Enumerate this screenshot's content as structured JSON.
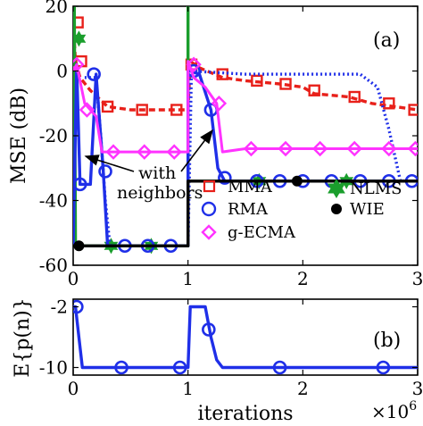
{
  "figure": {
    "x_axis_label": "iterations",
    "x_exponent_label": "×10",
    "x_exponent_power": "6",
    "annotation_neighbors": [
      "with",
      "neighbors"
    ]
  },
  "colors": {
    "MMA": "#e8201a",
    "NLMS": "#1a9e2c",
    "RMA": "#1f2fe8",
    "WIE": "#000000",
    "g-ECMA": "#ff33ff"
  },
  "chart_data": [
    {
      "type": "line",
      "panel_label": "(a)",
      "ylabel": "MSE (dB)",
      "xlim": [
        0,
        3
      ],
      "ylim": [
        -60,
        20
      ],
      "x_ticks": [
        0,
        1,
        2,
        3
      ],
      "x_tick_labels": [
        "0",
        "1",
        "2",
        "3"
      ],
      "y_ticks": [
        -60,
        -40,
        -20,
        0,
        20
      ],
      "y_tick_labels": [
        "-60",
        "-40",
        "-20",
        "0",
        "20"
      ],
      "legend_placement": "bottom-right",
      "legend": [
        "MMA",
        "NLMS",
        "RMA",
        "WIE",
        "g-ECMA"
      ],
      "series": [
        {
          "name": "MMA",
          "marker": "square",
          "line": "dashed",
          "x": [
            0.0,
            0.02,
            0.06,
            0.15,
            0.3,
            0.5,
            0.7,
            0.9,
            1.0,
            1.02,
            1.1,
            1.3,
            1.5,
            1.8,
            2.0,
            2.1,
            2.4,
            2.6,
            2.8,
            3.0
          ],
          "y": [
            15,
            3,
            -2,
            -6,
            -11,
            -12,
            -12,
            -12,
            -12,
            3,
            1,
            -2,
            -3,
            -4,
            -5,
            -7,
            -8,
            -10,
            -11,
            -12
          ],
          "marker_x": [
            0.04,
            0.07,
            0.3,
            0.6,
            0.9,
            1.03,
            1.3,
            1.6,
            1.85,
            2.1,
            2.45,
            2.75,
            2.97
          ],
          "marker_y": [
            15,
            3,
            -11,
            -12,
            -12,
            2,
            -1,
            -3,
            -4,
            -6,
            -8,
            -10,
            -12
          ]
        },
        {
          "name": "NLMS",
          "marker": "hexagram",
          "line": "solid",
          "x": [
            0.0,
            0.0,
            0.01,
            0.02,
            0.04,
            0.06,
            0.08,
            0.1,
            1.0,
            1.0,
            1.0,
            1.01,
            1.03,
            1.05,
            1.08,
            3.0
          ],
          "y": [
            -54,
            20,
            20,
            -54,
            -54,
            -54,
            -54,
            -54,
            -54,
            20,
            -34,
            -34,
            -34,
            -34,
            -34,
            -34
          ],
          "marker_x": [
            0.05,
            0.33,
            0.68,
            1.62,
            2.38
          ],
          "marker_y": [
            10,
            -54,
            -54,
            -34,
            -34
          ]
        },
        {
          "name": "RMA",
          "marker": "circle",
          "line": "solid+dotted",
          "x": [
            0.0,
            0.03,
            0.06,
            0.15,
            0.2,
            0.26,
            0.3,
            1.0,
            1.0,
            1.02,
            1.1,
            1.2,
            1.26,
            1.32,
            3.0
          ],
          "y": [
            -54,
            2,
            -35,
            -35,
            -1,
            -30,
            -54,
            -54,
            0,
            0,
            -1,
            -12,
            -30,
            -34,
            -34
          ],
          "marker_x": [
            0.06,
            0.18,
            0.28,
            0.45,
            0.65,
            0.85,
            1.05,
            1.2,
            1.32,
            1.6,
            1.8,
            2.0,
            2.25,
            2.5,
            2.75,
            2.95
          ],
          "marker_y": [
            -35,
            -1,
            -31,
            -54,
            -54,
            -54,
            0,
            -12,
            -33,
            -34,
            -34,
            -34,
            -34,
            -34,
            -34,
            -34
          ]
        },
        {
          "name": "RMA-dotted",
          "marker": "none",
          "line": "dotted",
          "x": [
            0.1,
            0.15,
            0.2,
            0.24,
            0.28,
            0.32,
            1.0,
            1.03,
            1.5,
            2.0,
            2.5,
            2.65,
            2.75,
            2.85,
            3.0
          ],
          "y": [
            -2,
            -2,
            -2,
            -20,
            -40,
            -54,
            -54,
            0,
            -1,
            -1,
            -1,
            -5,
            -18,
            -34,
            -34
          ],
          "marker_x": [
            1.33,
            1.6,
            1.9,
            2.1,
            2.35,
            2.65,
            2.78
          ],
          "marker_y": [
            -1,
            -1,
            -1,
            -1,
            -1,
            -2,
            -18
          ]
        },
        {
          "name": "WIE",
          "marker": "dot",
          "line": "solid",
          "x": [
            0.0,
            1.0,
            1.0,
            3.0
          ],
          "y": [
            -54,
            -54,
            -34,
            -34
          ],
          "marker_x": [
            0.05,
            1.95
          ],
          "marker_y": [
            -54,
            -34
          ]
        },
        {
          "name": "g-ECMA",
          "marker": "diamond",
          "line": "solid",
          "x": [
            0.0,
            0.03,
            0.1,
            0.2,
            0.25,
            0.35,
            0.5,
            1.0,
            1.0,
            1.05,
            1.15,
            1.25,
            1.3,
            1.5,
            3.0
          ],
          "y": [
            0,
            2,
            -10,
            -14,
            -25,
            -25,
            -25,
            -25,
            3,
            -2,
            -5,
            -10,
            -25,
            -24,
            -24
          ],
          "marker_x": [
            0.03,
            0.12,
            0.35,
            0.62,
            0.88,
            1.05,
            1.27,
            1.55,
            1.85,
            2.15,
            2.45,
            2.75,
            2.98
          ],
          "marker_y": [
            2,
            -12,
            -25,
            -25,
            -25,
            2,
            -10,
            -24,
            -24,
            -24,
            -24,
            -24,
            -24
          ]
        }
      ]
    },
    {
      "type": "line",
      "panel_label": "(b)",
      "ylabel": "E{p(n)}",
      "xlim": [
        0,
        3
      ],
      "ylim": [
        -11,
        -1
      ],
      "x_ticks": [
        0,
        1,
        2,
        3
      ],
      "x_tick_labels": [
        "0",
        "1",
        "2",
        "3"
      ],
      "y_ticks": [
        -10,
        -2
      ],
      "y_tick_labels": [
        "-10",
        "-2"
      ],
      "series": [
        {
          "name": "RMA",
          "marker": "circle",
          "line": "solid",
          "x": [
            0.0,
            0.02,
            0.05,
            0.08,
            1.0,
            1.02,
            1.04,
            1.15,
            1.2,
            1.25,
            1.3,
            3.0
          ],
          "y": [
            -2,
            -2,
            -6,
            -10,
            -10,
            -2,
            -2,
            -2,
            -6,
            -9,
            -10,
            -10
          ],
          "marker_x": [
            0.03,
            0.42,
            0.93,
            1.18,
            1.8,
            2.7
          ],
          "marker_y": [
            -2,
            -10,
            -10,
            -5,
            -10,
            -10
          ]
        }
      ]
    }
  ]
}
